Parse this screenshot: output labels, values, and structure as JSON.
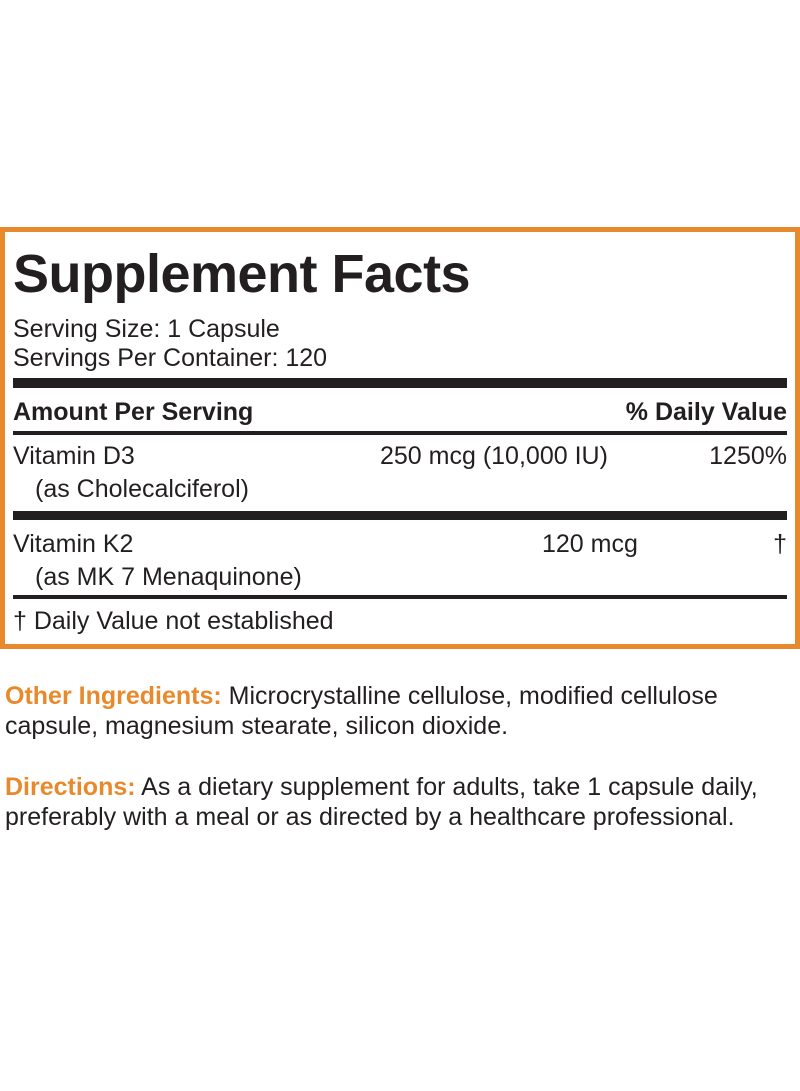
{
  "facts": {
    "title": "Supplement Facts",
    "serving_size": "Serving Size: 1 Capsule",
    "servings_per_container": "Servings Per Container: 120",
    "header_left": "Amount Per Serving",
    "header_right": "% Daily Value",
    "rows": [
      {
        "name": "Vitamin D3",
        "sub": "(as Cholecalciferol)",
        "amount": "250 mcg (10,000 IU)",
        "daily_value": "1250%"
      },
      {
        "name": "Vitamin K2",
        "sub": "(as MK 7 Menaquinone)",
        "amount": "120 mcg",
        "daily_value": "†"
      }
    ],
    "footnote": "† Daily Value not established"
  },
  "ingredients": {
    "label": "Other Ingredients:",
    "text": " Microcrystalline cellulose, modified cellulose capsule, magnesium stearate, silicon dioxide."
  },
  "directions": {
    "label": "Directions:",
    "text": " As a dietary supplement for adults, take 1 capsule daily, preferably with a meal or as directed by a healthcare professional."
  },
  "colors": {
    "accent": "#e88a2c",
    "text": "#231f20"
  }
}
